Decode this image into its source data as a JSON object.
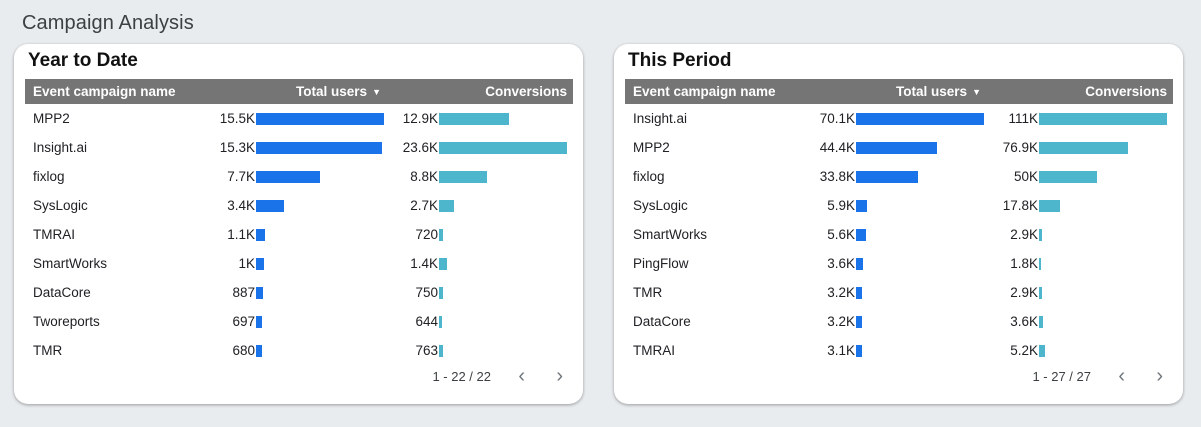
{
  "page": {
    "title": "Campaign Analysis"
  },
  "colors": {
    "users_bar": "#1a73e8",
    "conversions_bar": "#4db6cc",
    "header_bg": "#757575"
  },
  "cards": [
    {
      "id": "ytd",
      "title": "Year to Date",
      "columns": {
        "name": "Event campaign name",
        "users": "Total users",
        "conversions": "Conversions"
      },
      "users_max": 15.5,
      "conversions_max": 23.6,
      "rows": [
        {
          "name": "MPP2",
          "users_label": "15.5K",
          "users": 15.5,
          "conv_label": "12.9K",
          "conv": 12.9
        },
        {
          "name": "Insight.ai",
          "users_label": "15.3K",
          "users": 15.3,
          "conv_label": "23.6K",
          "conv": 23.6
        },
        {
          "name": "fixlog",
          "users_label": "7.7K",
          "users": 7.7,
          "conv_label": "8.8K",
          "conv": 8.8
        },
        {
          "name": "SysLogic",
          "users_label": "3.4K",
          "users": 3.4,
          "conv_label": "2.7K",
          "conv": 2.7
        },
        {
          "name": "TMRAI",
          "users_label": "1.1K",
          "users": 1.1,
          "conv_label": "720",
          "conv": 0.72
        },
        {
          "name": "SmartWorks",
          "users_label": "1K",
          "users": 1.0,
          "conv_label": "1.4K",
          "conv": 1.4
        },
        {
          "name": "DataCore",
          "users_label": "887",
          "users": 0.887,
          "conv_label": "750",
          "conv": 0.75
        },
        {
          "name": "Tworeports",
          "users_label": "697",
          "users": 0.697,
          "conv_label": "644",
          "conv": 0.644
        },
        {
          "name": "TMR",
          "users_label": "680",
          "users": 0.68,
          "conv_label": "763",
          "conv": 0.763
        }
      ],
      "pagination": "1 - 22 / 22"
    },
    {
      "id": "period",
      "title": "This Period",
      "columns": {
        "name": "Event campaign name",
        "users": "Total users",
        "conversions": "Conversions"
      },
      "users_max": 70.1,
      "conversions_max": 111,
      "rows": [
        {
          "name": "Insight.ai",
          "users_label": "70.1K",
          "users": 70.1,
          "conv_label": "111K",
          "conv": 111
        },
        {
          "name": "MPP2",
          "users_label": "44.4K",
          "users": 44.4,
          "conv_label": "76.9K",
          "conv": 76.9
        },
        {
          "name": "fixlog",
          "users_label": "33.8K",
          "users": 33.8,
          "conv_label": "50K",
          "conv": 50
        },
        {
          "name": "SysLogic",
          "users_label": "5.9K",
          "users": 5.9,
          "conv_label": "17.8K",
          "conv": 17.8
        },
        {
          "name": "SmartWorks",
          "users_label": "5.6K",
          "users": 5.6,
          "conv_label": "2.9K",
          "conv": 2.9
        },
        {
          "name": "PingFlow",
          "users_label": "3.6K",
          "users": 3.6,
          "conv_label": "1.8K",
          "conv": 1.8
        },
        {
          "name": "TMR",
          "users_label": "3.2K",
          "users": 3.2,
          "conv_label": "2.9K",
          "conv": 2.9
        },
        {
          "name": "DataCore",
          "users_label": "3.2K",
          "users": 3.2,
          "conv_label": "3.6K",
          "conv": 3.6
        },
        {
          "name": "TMRAI",
          "users_label": "3.1K",
          "users": 3.1,
          "conv_label": "5.2K",
          "conv": 5.2
        }
      ],
      "pagination": "1 - 27 / 27"
    }
  ],
  "icons": {
    "sort": "sort-desc-icon",
    "prev": "chevron-left-icon",
    "next": "chevron-right-icon"
  }
}
